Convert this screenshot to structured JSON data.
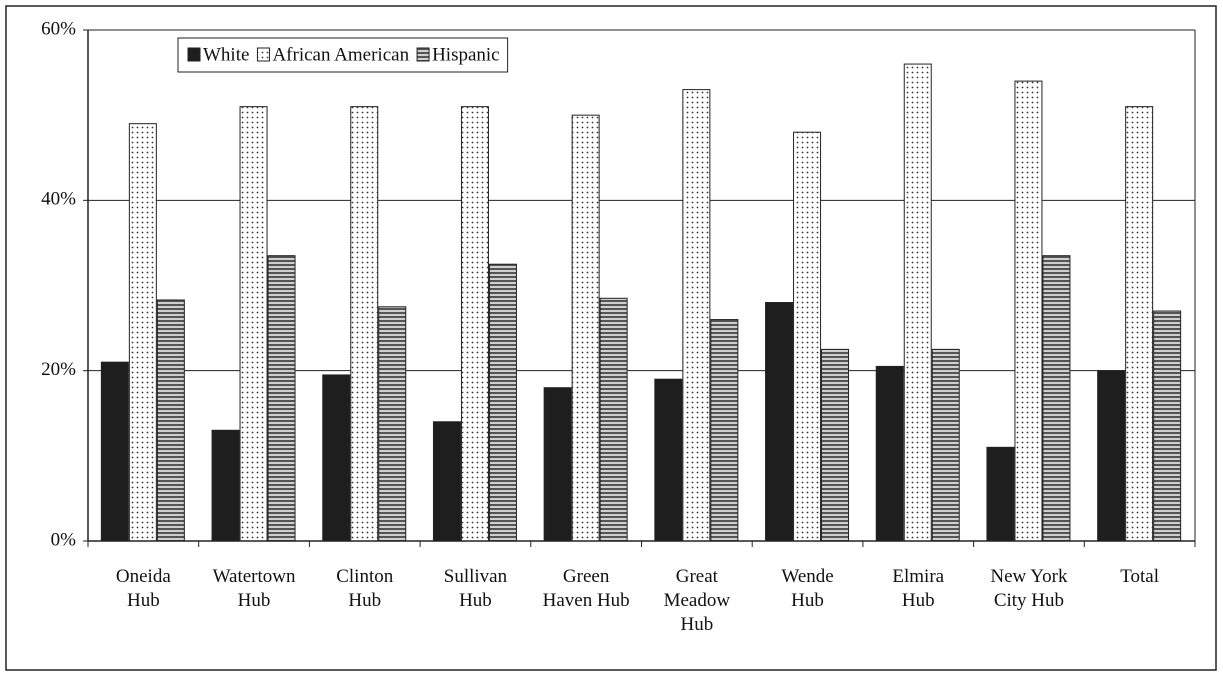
{
  "chart_data": {
    "type": "bar",
    "categories": [
      "Oneida\nHub",
      "Watertown\nHub",
      "Clinton\nHub",
      "Sullivan\nHub",
      "Green\nHaven Hub",
      "Great\nMeadow\nHub",
      "Wende\nHub",
      "Elmira\nHub",
      "New York\nCity Hub",
      "Total"
    ],
    "series": [
      {
        "name": "White",
        "color": "#1e1e1e",
        "pattern": "solid",
        "values": [
          21,
          13,
          19.5,
          14,
          18,
          19,
          28,
          20.5,
          11,
          20
        ]
      },
      {
        "name": "African American",
        "color": "#ffffff",
        "pattern": "dots",
        "values": [
          49,
          51,
          51,
          51,
          50,
          53,
          48,
          56,
          54,
          51
        ]
      },
      {
        "name": "Hispanic",
        "color": "#9a9a9a",
        "pattern": "stripes",
        "values": [
          28.3,
          33.5,
          27.5,
          32.5,
          28.5,
          26,
          22.5,
          22.5,
          33.5,
          27
        ]
      }
    ],
    "ylim": [
      0,
      60
    ],
    "yticks": [
      {
        "value": 0,
        "label": "0%"
      },
      {
        "value": 20,
        "label": "20%"
      },
      {
        "value": 40,
        "label": "40%"
      },
      {
        "value": 60,
        "label": "60%"
      }
    ],
    "grid": true,
    "legend": "top-left"
  }
}
